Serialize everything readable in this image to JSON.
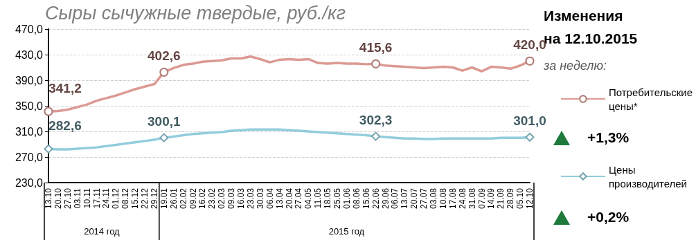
{
  "chart_data": {
    "type": "line",
    "title": "Сыры сычужные твердые, руб./кг",
    "categories": [
      "13.10",
      "20.10",
      "27.10",
      "03.11",
      "10.11",
      "17.11",
      "24.11",
      "01.12",
      "08.12",
      "15.12",
      "22.12",
      "29.12",
      "19.01",
      "26.01",
      "02.02",
      "09.02",
      "16.02",
      "23.02",
      "02.03",
      "09.03",
      "16.03",
      "23.03",
      "30.03",
      "06.04",
      "13.04",
      "20.04",
      "27.04",
      "04.05",
      "11.05",
      "18.05",
      "25.05",
      "01.06",
      "08.06",
      "15.06",
      "22.06",
      "29.06",
      "06.07",
      "13.07",
      "20.07",
      "27.07",
      "03.08",
      "10.08",
      "17.08",
      "24.08",
      "31.08",
      "07.09",
      "14.09",
      "21.09",
      "28.09",
      "05.10",
      "12.10"
    ],
    "series": [
      {
        "name": "Потребительские цены*",
        "color": "#dc9a93",
        "values": [
          341.2,
          342,
          344,
          348,
          352,
          358,
          362,
          366,
          371,
          376,
          380,
          384,
          402.6,
          409,
          414,
          416,
          419,
          420,
          421,
          424,
          424,
          427,
          423,
          418,
          422,
          423,
          422,
          423,
          417,
          416,
          417,
          416,
          416,
          415,
          415.6,
          413,
          412,
          411,
          410,
          409,
          410,
          411,
          410,
          405,
          410,
          404,
          411,
          410,
          408,
          413,
          420.0
        ],
        "value_labels": [
          "341,2",
          null,
          null,
          null,
          null,
          null,
          null,
          null,
          null,
          null,
          null,
          null,
          "402,6",
          null,
          null,
          null,
          null,
          null,
          null,
          null,
          null,
          null,
          null,
          null,
          null,
          null,
          null,
          null,
          null,
          null,
          null,
          null,
          null,
          null,
          "415,6",
          null,
          null,
          null,
          null,
          null,
          null,
          null,
          null,
          null,
          null,
          null,
          null,
          null,
          null,
          null,
          "420,0"
        ]
      },
      {
        "name": "Цены производителей",
        "color": "#92cddc",
        "values": [
          282.6,
          282,
          282,
          283,
          284,
          285,
          287,
          289,
          291,
          293,
          295,
          297,
          300.1,
          302,
          304,
          306,
          307,
          308,
          309,
          311,
          312,
          313,
          313,
          313,
          313,
          312,
          311,
          310,
          309,
          308,
          307,
          306,
          305,
          304,
          302.3,
          301,
          300,
          299,
          299,
          298,
          298,
          299,
          299,
          299,
          299,
          299,
          299,
          300,
          300,
          300,
          301.0
        ],
        "value_labels": [
          "282,6",
          null,
          null,
          null,
          null,
          null,
          null,
          null,
          null,
          null,
          null,
          null,
          "300,1",
          null,
          null,
          null,
          null,
          null,
          null,
          null,
          null,
          null,
          null,
          null,
          null,
          null,
          null,
          null,
          null,
          null,
          null,
          null,
          null,
          null,
          "302,3",
          null,
          null,
          null,
          null,
          null,
          null,
          null,
          null,
          null,
          null,
          null,
          null,
          null,
          null,
          null,
          "301,0"
        ]
      }
    ],
    "ylim": [
      230,
      470
    ],
    "yticks": [
      {
        "value": 230,
        "label": "230,0"
      },
      {
        "value": 270,
        "label": "270,0"
      },
      {
        "value": 310,
        "label": "310,0"
      },
      {
        "value": 350,
        "label": "350,0"
      },
      {
        "value": 390,
        "label": "390,0"
      },
      {
        "value": 430,
        "label": "430,0"
      },
      {
        "value": 470,
        "label": "470,0"
      }
    ],
    "grid": "y",
    "legend": "right",
    "annotations": [
      "Изменения на 12.10.2015",
      "за неделю:",
      "+1,3%",
      "+0,2%",
      "2014 год",
      "2015 год"
    ]
  }
}
